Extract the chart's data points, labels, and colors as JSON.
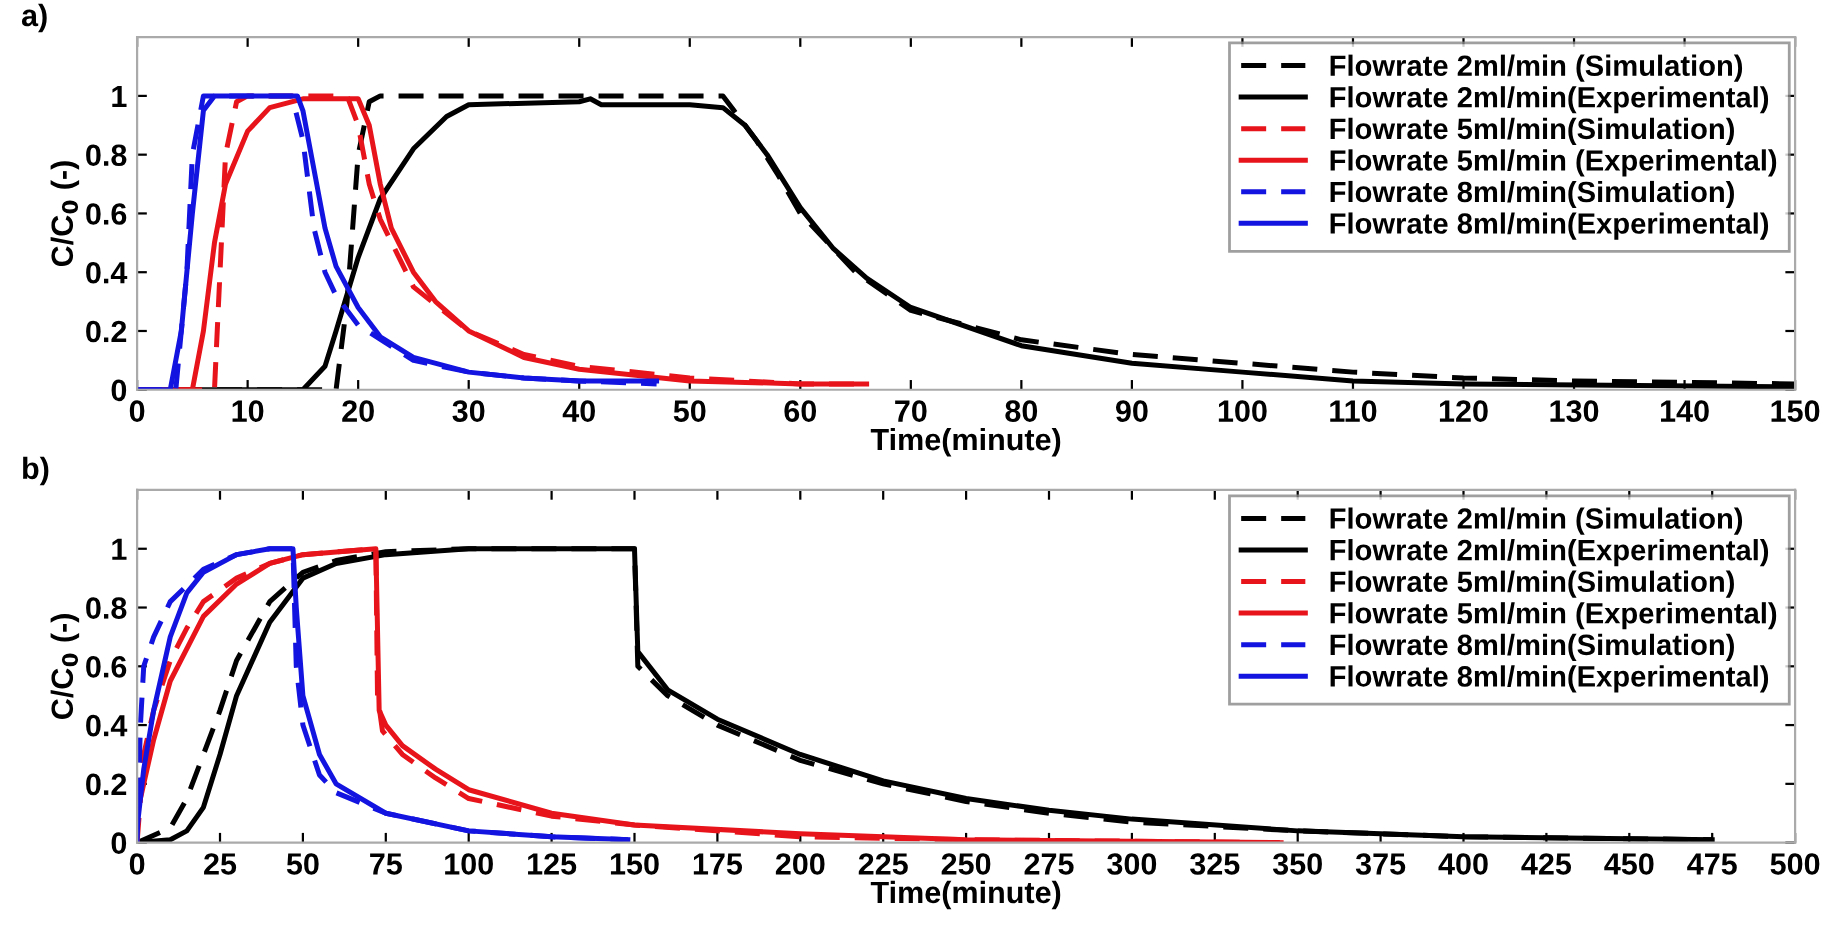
{
  "chart_data": [
    {
      "type": "line",
      "title": "a)",
      "xlabel": "Time(minute)",
      "ylabel": "C/C$_{0}$ (-)",
      "xlim": [
        0,
        150
      ],
      "xticks": [
        0,
        10,
        20,
        30,
        40,
        50,
        60,
        70,
        80,
        90,
        100,
        110,
        120,
        130,
        140,
        150
      ],
      "ylim": [
        0,
        1.2
      ],
      "yticks": [
        0,
        0.2,
        0.4,
        0.6,
        0.8,
        1
      ],
      "grid": false,
      "legend": "top right",
      "marker": "none",
      "series": [
        {
          "name": "Flowrate 2ml/min (Simulation)",
          "color": "#000000",
          "line_style": "dashed",
          "x": [
            0,
            18,
            19,
            20,
            21,
            22,
            30,
            40,
            53,
            54,
            56,
            58,
            60,
            65,
            70,
            80,
            90,
            100,
            110,
            120,
            130,
            150
          ],
          "values": [
            0,
            0,
            0.3,
            0.8,
            0.98,
            1,
            1,
            1,
            1,
            0.95,
            0.85,
            0.73,
            0.6,
            0.4,
            0.27,
            0.17,
            0.12,
            0.09,
            0.06,
            0.04,
            0.03,
            0.02
          ]
        },
        {
          "name": "Flowrate 2ml/min(Experimental)",
          "color": "#000000",
          "line_style": "solid",
          "x": [
            0,
            15,
            17,
            18,
            20,
            22,
            25,
            28,
            30,
            40,
            41,
            42,
            50,
            53,
            55,
            57,
            60,
            63,
            66,
            70,
            80,
            90,
            100,
            110,
            120,
            150
          ],
          "values": [
            0,
            0,
            0.08,
            0.2,
            0.45,
            0.65,
            0.82,
            0.93,
            0.97,
            0.98,
            0.99,
            0.97,
            0.97,
            0.96,
            0.9,
            0.8,
            0.62,
            0.48,
            0.38,
            0.28,
            0.15,
            0.09,
            0.06,
            0.03,
            0.02,
            0.01
          ]
        },
        {
          "name": "Flowrate 5ml/min(Simulation)",
          "color": "#e8141b",
          "line_style": "dashed",
          "x": [
            0,
            7,
            8,
            9,
            10,
            19,
            20,
            21,
            22,
            25,
            30,
            35,
            40,
            50,
            60,
            66
          ],
          "values": [
            0,
            0,
            0.8,
            0.98,
            1,
            1,
            0.9,
            0.7,
            0.58,
            0.35,
            0.2,
            0.12,
            0.08,
            0.04,
            0.02,
            0.02
          ]
        },
        {
          "name": "Flowrate 5ml/min (Experimental)",
          "color": "#e8141b",
          "line_style": "solid",
          "x": [
            0,
            5,
            6,
            7,
            8,
            10,
            12,
            15,
            20,
            21,
            22,
            23,
            25,
            27,
            30,
            35,
            40,
            50,
            60,
            66
          ],
          "values": [
            0,
            0,
            0.2,
            0.5,
            0.7,
            0.88,
            0.96,
            0.99,
            0.99,
            0.9,
            0.7,
            0.55,
            0.4,
            0.3,
            0.2,
            0.11,
            0.07,
            0.03,
            0.02,
            0.02
          ]
        },
        {
          "name": "Flowrate 8ml/min(Simulation)",
          "color": "#1414e0",
          "line_style": "dashed",
          "x": [
            0,
            3.5,
            4.5,
            5,
            6,
            14,
            15,
            16,
            17,
            18,
            20,
            25,
            30,
            35,
            40,
            47
          ],
          "values": [
            0,
            0,
            0.4,
            0.8,
            1,
            1,
            0.85,
            0.55,
            0.4,
            0.32,
            0.22,
            0.1,
            0.06,
            0.04,
            0.03,
            0.02
          ]
        },
        {
          "name": "Flowrate 8ml/min(Experimental)",
          "color": "#1414e0",
          "line_style": "solid",
          "x": [
            0,
            3,
            4,
            5,
            6,
            7,
            14.5,
            15,
            16,
            17,
            18,
            20,
            22,
            25,
            30,
            35,
            40,
            47
          ],
          "values": [
            0,
            0,
            0.2,
            0.6,
            0.95,
            1,
            1,
            0.95,
            0.75,
            0.55,
            0.42,
            0.28,
            0.18,
            0.11,
            0.06,
            0.04,
            0.03,
            0.03
          ]
        }
      ]
    },
    {
      "type": "line",
      "title": "b)",
      "xlabel": "Time(minute)",
      "ylabel": "C/C$_{0}$ (-)",
      "xlim": [
        0,
        500
      ],
      "xticks": [
        0,
        25,
        50,
        75,
        100,
        125,
        150,
        175,
        200,
        225,
        250,
        275,
        300,
        325,
        350,
        375,
        400,
        425,
        450,
        475,
        500
      ],
      "ylim": [
        0,
        1.2
      ],
      "yticks": [
        0,
        0.2,
        0.4,
        0.6,
        0.8,
        1
      ],
      "grid": false,
      "legend": "top right",
      "marker": "none",
      "series": [
        {
          "name": "Flowrate 2ml/min (Simulation)",
          "color": "#000000",
          "line_style": "dashed",
          "x": [
            0,
            10,
            15,
            20,
            25,
            30,
            40,
            50,
            60,
            75,
            100,
            150,
            151,
            160,
            175,
            200,
            225,
            250,
            275,
            300,
            350,
            400,
            475
          ],
          "values": [
            0,
            0.05,
            0.15,
            0.3,
            0.45,
            0.62,
            0.82,
            0.92,
            0.96,
            0.99,
            1,
            1,
            0.6,
            0.5,
            0.4,
            0.28,
            0.2,
            0.14,
            0.1,
            0.07,
            0.04,
            0.02,
            0.01
          ]
        },
        {
          "name": "Flowrate 2ml/min(Experimental)",
          "color": "#000000",
          "line_style": "solid",
          "x": [
            0,
            10,
            15,
            20,
            25,
            30,
            40,
            50,
            60,
            75,
            100,
            150,
            151,
            160,
            175,
            200,
            225,
            250,
            275,
            300,
            350,
            400,
            475
          ],
          "values": [
            0,
            0.01,
            0.04,
            0.12,
            0.3,
            0.5,
            0.75,
            0.9,
            0.95,
            0.98,
            1,
            1,
            0.65,
            0.52,
            0.42,
            0.3,
            0.21,
            0.15,
            0.11,
            0.08,
            0.04,
            0.02,
            0.01
          ]
        },
        {
          "name": "Flowrate 5ml/min(Simulation)",
          "color": "#e8141b",
          "line_style": "dashed",
          "x": [
            0,
            2,
            5,
            10,
            15,
            20,
            30,
            40,
            50,
            72,
            72.5,
            74,
            80,
            90,
            100,
            125,
            150,
            200,
            250,
            345
          ],
          "values": [
            0,
            0.3,
            0.45,
            0.62,
            0.73,
            0.82,
            0.9,
            0.95,
            0.98,
            1,
            0.5,
            0.38,
            0.3,
            0.22,
            0.15,
            0.09,
            0.06,
            0.02,
            0.01,
            0
          ]
        },
        {
          "name": "Flowrate 5ml/min (Experimental)",
          "color": "#e8141b",
          "line_style": "solid",
          "x": [
            0,
            5,
            10,
            20,
            30,
            40,
            50,
            72,
            73,
            75,
            80,
            90,
            100,
            125,
            150,
            200,
            250,
            345
          ],
          "values": [
            0.1,
            0.35,
            0.55,
            0.77,
            0.88,
            0.95,
            0.98,
            1,
            0.45,
            0.4,
            0.33,
            0.25,
            0.18,
            0.1,
            0.06,
            0.03,
            0.01,
            0
          ]
        },
        {
          "name": "Flowrate 8ml/min(Simulation)",
          "color": "#1414e0",
          "line_style": "dashed",
          "x": [
            0,
            1,
            2,
            5,
            10,
            20,
            30,
            40,
            47,
            48,
            50,
            55,
            60,
            75,
            100,
            125,
            148
          ],
          "values": [
            0,
            0.4,
            0.6,
            0.7,
            0.82,
            0.93,
            0.98,
            1,
            1,
            0.6,
            0.4,
            0.23,
            0.17,
            0.1,
            0.04,
            0.02,
            0.01
          ]
        },
        {
          "name": "Flowrate 8ml/min(Experimental)",
          "color": "#1414e0",
          "line_style": "solid",
          "x": [
            0,
            2,
            5,
            10,
            15,
            20,
            30,
            40,
            47,
            48,
            50,
            55,
            60,
            75,
            100,
            125,
            148
          ],
          "values": [
            0.05,
            0.25,
            0.45,
            0.7,
            0.85,
            0.92,
            0.98,
            1,
            1,
            0.8,
            0.5,
            0.3,
            0.2,
            0.1,
            0.04,
            0.02,
            0.01
          ]
        }
      ]
    }
  ]
}
